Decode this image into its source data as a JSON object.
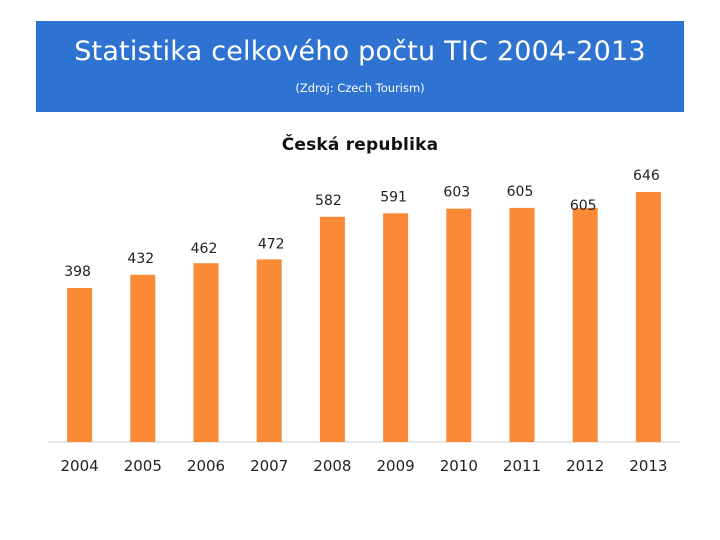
{
  "header": {
    "title": "Statistika celkového počtu TIC 2004-2013",
    "source": "(Zdroj: Czech Tourism)"
  },
  "colors": {
    "header_bg": "#2f73d2",
    "bar": "#fb8a36",
    "axis": "#cfcfcf",
    "text": "#222222"
  },
  "chart_data": {
    "type": "bar",
    "title": "Česká republika",
    "categories": [
      "2004",
      "2005",
      "2006",
      "2007",
      "2008",
      "2009",
      "2010",
      "2011",
      "2012",
      "2013"
    ],
    "values": [
      398,
      432,
      462,
      472,
      582,
      591,
      603,
      605,
      605,
      646
    ],
    "data_labels": [
      "398",
      "432",
      "462",
      "472",
      "582",
      "591",
      "603",
      "605",
      "605",
      "646"
    ],
    "grid": false,
    "legend": "none"
  }
}
